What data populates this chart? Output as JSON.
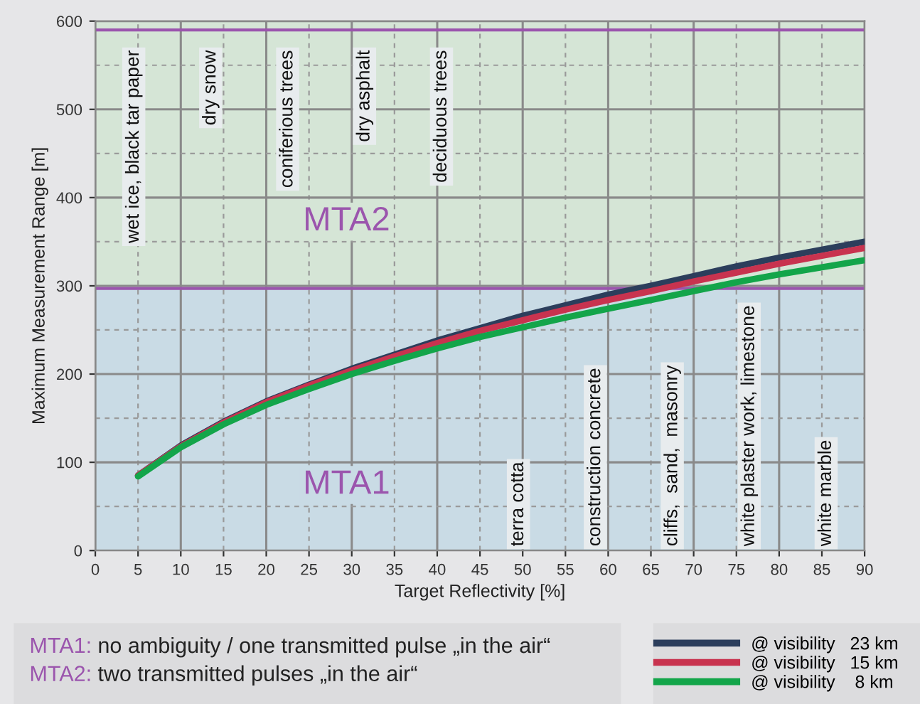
{
  "chart_data": {
    "type": "line",
    "xlabel": "Target Reflectivity [%]",
    "ylabel": "Maximum Measurement Range [m]",
    "x": [
      5,
      10,
      15,
      20,
      25,
      30,
      35,
      40,
      45,
      50,
      55,
      60,
      65,
      70,
      75,
      80,
      85,
      90
    ],
    "series": [
      {
        "name": "@ visibility   23 km",
        "color": "#2c3e5c",
        "values": [
          85,
          119,
          146,
          169,
          188,
          206,
          222,
          238,
          252,
          266,
          278,
          290,
          300,
          311,
          322,
          332,
          341,
          350
        ]
      },
      {
        "name": "@ visibility   15 km",
        "color": "#c8334f",
        "values": [
          85,
          118,
          145,
          168,
          187,
          204,
          220,
          235,
          249,
          261,
          273,
          284,
          294,
          305,
          315,
          325,
          334,
          343
        ]
      },
      {
        "name": "@ visibility    8 km",
        "color": "#13a54a",
        "values": [
          84,
          117,
          143,
          165,
          183,
          200,
          215,
          229,
          242,
          253,
          264,
          274,
          284,
          294,
          304,
          313,
          321,
          329
        ]
      }
    ],
    "xlim": [
      0,
      90
    ],
    "xticks": [
      0,
      5,
      10,
      15,
      20,
      25,
      30,
      35,
      40,
      45,
      50,
      55,
      60,
      65,
      70,
      75,
      80,
      85,
      90
    ],
    "ylim": [
      0,
      600
    ],
    "yticks": [
      0,
      100,
      200,
      300,
      400,
      500,
      600
    ],
    "grid": true,
    "legend": "bottom right",
    "line_style": "solid",
    "marker": "none",
    "bands": [
      {
        "axis": "y",
        "from": 0,
        "to": 297,
        "label": "MTA1",
        "color": "#c9dbe5"
      },
      {
        "axis": "y",
        "from": 297,
        "to": 600,
        "label": "MTA2",
        "color": "#d5e5d6"
      }
    ],
    "ref_lines": [
      {
        "axis": "y",
        "value": 297,
        "color": "#9b55ad"
      },
      {
        "axis": "y",
        "value": 590,
        "color": "#9b55ad"
      }
    ],
    "annotations": [
      "wet ice, black tar paper",
      "dry snow",
      "coniferious trees",
      "dry asphalt",
      "deciduous trees",
      "terra cotta",
      "construction concrete",
      "cliffs,  sand,  masonry",
      "white plaster work, limestone",
      "white marble",
      "MTA1: no ambiguity / one transmitted pulse „in the air“",
      "MTA2: two transmitted pulses „in the air“"
    ]
  }
}
